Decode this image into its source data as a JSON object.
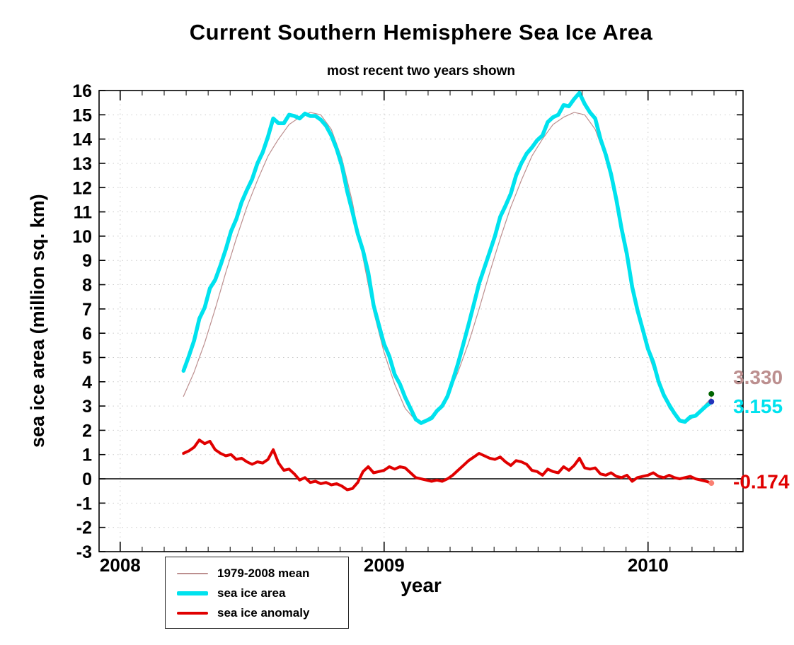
{
  "chart_data": {
    "type": "line",
    "title": "Current Southern Hemisphere Sea Ice Area",
    "subtitle": "most recent two years shown",
    "xlabel": "year",
    "ylabel": "sea ice area (million sq. km)",
    "x_range": [
      2007.92,
      2010.36
    ],
    "y_range": [
      -3,
      16
    ],
    "x_ticks": [
      2008,
      2009,
      2010
    ],
    "y_ticks": [
      -3,
      -2,
      -1,
      0,
      1,
      2,
      3,
      4,
      5,
      6,
      7,
      8,
      9,
      10,
      11,
      12,
      13,
      14,
      15,
      16
    ],
    "grid": "dotted",
    "legend_position": "bottom-left",
    "zero_line": true,
    "x": [
      2008.24,
      2008.26,
      2008.28,
      2008.3,
      2008.32,
      2008.34,
      2008.36,
      2008.38,
      2008.4,
      2008.42,
      2008.44,
      2008.46,
      2008.48,
      2008.5,
      2008.52,
      2008.54,
      2008.56,
      2008.58,
      2008.6,
      2008.62,
      2008.64,
      2008.66,
      2008.68,
      2008.7,
      2008.72,
      2008.74,
      2008.76,
      2008.78,
      2008.8,
      2008.82,
      2008.84,
      2008.86,
      2008.88,
      2008.9,
      2008.92,
      2008.94,
      2008.96,
      2008.98,
      2009.0,
      2009.02,
      2009.04,
      2009.06,
      2009.08,
      2009.1,
      2009.12,
      2009.14,
      2009.16,
      2009.18,
      2009.2,
      2009.22,
      2009.24,
      2009.26,
      2009.28,
      2009.3,
      2009.32,
      2009.34,
      2009.36,
      2009.38,
      2009.4,
      2009.42,
      2009.44,
      2009.46,
      2009.48,
      2009.5,
      2009.52,
      2009.54,
      2009.56,
      2009.58,
      2009.6,
      2009.62,
      2009.64,
      2009.66,
      2009.68,
      2009.7,
      2009.72,
      2009.74,
      2009.76,
      2009.78,
      2009.8,
      2009.82,
      2009.84,
      2009.86,
      2009.88,
      2009.9,
      2009.92,
      2009.94,
      2009.96,
      2009.98,
      2010.0,
      2010.02,
      2010.04,
      2010.06,
      2010.08,
      2010.1,
      2010.12,
      2010.14,
      2010.16,
      2010.18,
      2010.2,
      2010.22,
      2010.24
    ],
    "series": [
      {
        "name": "1979-2008 mean",
        "color": "#bc8f8f",
        "width": 1.2,
        "values": [
          3.4,
          3.9,
          4.4,
          5.0,
          5.6,
          6.3,
          7.0,
          7.75,
          8.5,
          9.2,
          9.9,
          10.55,
          11.2,
          11.75,
          12.3,
          12.8,
          13.3,
          13.65,
          14.0,
          14.3,
          14.6,
          14.75,
          14.9,
          15.0,
          15.1,
          15.05,
          15.0,
          14.7,
          14.4,
          13.8,
          13.2,
          12.3,
          11.4,
          10.25,
          9.1,
          8.0,
          6.9,
          6.05,
          5.2,
          4.55,
          3.9,
          3.4,
          2.9,
          2.65,
          2.4,
          2.3,
          2.45,
          2.6,
          2.85,
          3.1,
          3.4,
          3.9,
          4.4,
          5.0,
          5.6,
          6.3,
          7.0,
          7.75,
          8.5,
          9.2,
          9.9,
          10.55,
          11.2,
          11.75,
          12.3,
          12.8,
          13.3,
          13.65,
          14.0,
          14.3,
          14.6,
          14.75,
          14.9,
          15.0,
          15.1,
          15.05,
          15.0,
          14.7,
          14.4,
          13.8,
          13.2,
          12.3,
          11.4,
          10.25,
          9.1,
          8.0,
          6.9,
          6.05,
          5.2,
          4.55,
          3.9,
          3.4,
          2.9,
          2.65,
          2.4,
          2.3,
          2.45,
          2.6,
          2.85,
          3.1,
          3.33
        ]
      },
      {
        "name": "sea ice area",
        "color": "#00e2ee",
        "width": 5.5,
        "values": [
          4.45,
          5.05,
          5.7,
          6.6,
          7.05,
          7.85,
          8.2,
          8.8,
          9.45,
          10.2,
          10.7,
          11.4,
          11.9,
          12.35,
          13.0,
          13.45,
          14.1,
          14.85,
          14.65,
          14.65,
          15.0,
          14.95,
          14.85,
          15.05,
          14.95,
          14.95,
          14.8,
          14.55,
          14.15,
          13.6,
          12.9,
          11.85,
          11.0,
          10.1,
          9.4,
          8.5,
          7.15,
          6.35,
          5.55,
          5.05,
          4.3,
          3.9,
          3.35,
          2.9,
          2.45,
          2.3,
          2.4,
          2.5,
          2.8,
          3.0,
          3.4,
          4.05,
          4.75,
          5.55,
          6.35,
          7.2,
          8.05,
          8.7,
          9.35,
          10.0,
          10.8,
          11.25,
          11.75,
          12.5,
          13.0,
          13.4,
          13.65,
          13.95,
          14.15,
          14.7,
          14.9,
          15.0,
          15.4,
          15.35,
          15.65,
          15.9,
          15.45,
          15.1,
          14.85,
          14.0,
          13.35,
          12.55,
          11.5,
          10.3,
          9.25,
          7.9,
          6.95,
          6.15,
          5.35,
          4.8,
          4.0,
          3.45,
          3.05,
          2.7,
          2.4,
          2.35,
          2.55,
          2.6,
          2.8,
          3.0,
          3.155
        ]
      },
      {
        "name": "sea ice anomaly",
        "color": "#e00000",
        "width": 4,
        "values": [
          1.05,
          1.15,
          1.3,
          1.6,
          1.45,
          1.55,
          1.2,
          1.05,
          0.95,
          1.0,
          0.8,
          0.85,
          0.7,
          0.6,
          0.7,
          0.65,
          0.8,
          1.2,
          0.65,
          0.35,
          0.4,
          0.2,
          -0.05,
          0.05,
          -0.15,
          -0.1,
          -0.2,
          -0.15,
          -0.25,
          -0.2,
          -0.3,
          -0.45,
          -0.4,
          -0.15,
          0.3,
          0.5,
          0.25,
          0.3,
          0.35,
          0.5,
          0.4,
          0.5,
          0.45,
          0.25,
          0.05,
          0.0,
          -0.05,
          -0.1,
          -0.05,
          -0.1,
          0.0,
          0.15,
          0.35,
          0.55,
          0.75,
          0.9,
          1.05,
          0.95,
          0.85,
          0.8,
          0.9,
          0.7,
          0.55,
          0.75,
          0.7,
          0.6,
          0.35,
          0.3,
          0.15,
          0.4,
          0.3,
          0.25,
          0.5,
          0.35,
          0.55,
          0.85,
          0.45,
          0.4,
          0.45,
          0.2,
          0.15,
          0.25,
          0.1,
          0.05,
          0.15,
          -0.1,
          0.05,
          0.1,
          0.15,
          0.25,
          0.1,
          0.05,
          0.15,
          0.05,
          0.0,
          0.05,
          0.1,
          0.0,
          -0.05,
          -0.1,
          -0.174
        ]
      }
    ],
    "end_labels": [
      {
        "text": "3.330",
        "color": "#bc8f8f",
        "at_value": 4.2
      },
      {
        "text": "3.155",
        "color": "#00e2ee",
        "at_value": 3.0
      },
      {
        "text": "-0.174",
        "color": "#e00000",
        "at_value": -0.1
      }
    ],
    "end_markers": [
      {
        "x": 2010.24,
        "y": 3.5,
        "color": "#006400"
      },
      {
        "x": 2010.24,
        "y": 3.18,
        "color": "#2233bb"
      },
      {
        "x": 2010.24,
        "y": -0.174,
        "color": "#fa8072"
      }
    ]
  }
}
